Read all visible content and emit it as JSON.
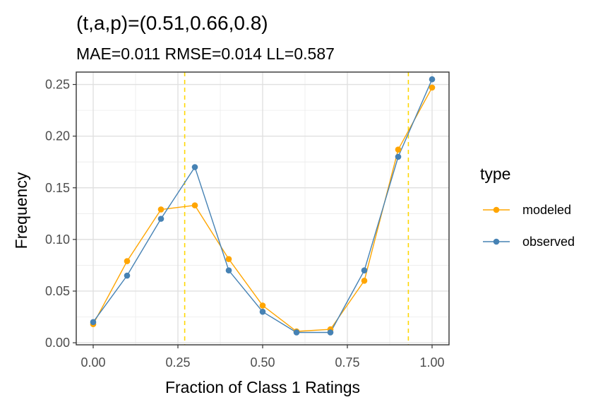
{
  "chart_data": {
    "type": "line",
    "title": "(t,a,p)=(0.51,0.66,0.8)",
    "subtitle": "MAE=0.011  RMSE=0.014  LL=0.587",
    "xlabel": "Fraction of Class 1 Ratings",
    "ylabel": "Frequency",
    "xlim": [
      -0.05,
      1.05
    ],
    "ylim": [
      -0.002,
      0.262
    ],
    "xticks": [
      "0.00",
      "0.25",
      "0.50",
      "0.75",
      "1.00"
    ],
    "yticks": [
      "0.00",
      "0.05",
      "0.10",
      "0.15",
      "0.20",
      "0.25"
    ],
    "x": [
      0.0,
      0.1,
      0.2,
      0.3,
      0.4,
      0.5,
      0.6,
      0.7,
      0.8,
      0.9,
      1.0
    ],
    "series": [
      {
        "name": "modeled",
        "color": "#FFA500",
        "values": [
          0.018,
          0.079,
          0.129,
          0.133,
          0.081,
          0.036,
          0.011,
          0.013,
          0.06,
          0.187,
          0.247
        ]
      },
      {
        "name": "observed",
        "color": "#4682B4",
        "values": [
          0.02,
          0.065,
          0.12,
          0.17,
          0.07,
          0.03,
          0.01,
          0.01,
          0.07,
          0.18,
          0.255
        ]
      }
    ],
    "vlines": [
      {
        "x": 0.27,
        "color": "#FFD700",
        "style": "dashed"
      },
      {
        "x": 0.93,
        "color": "#FFD700",
        "style": "dashed"
      }
    ],
    "legend": {
      "title": "type",
      "position": "right"
    },
    "grid": true
  }
}
